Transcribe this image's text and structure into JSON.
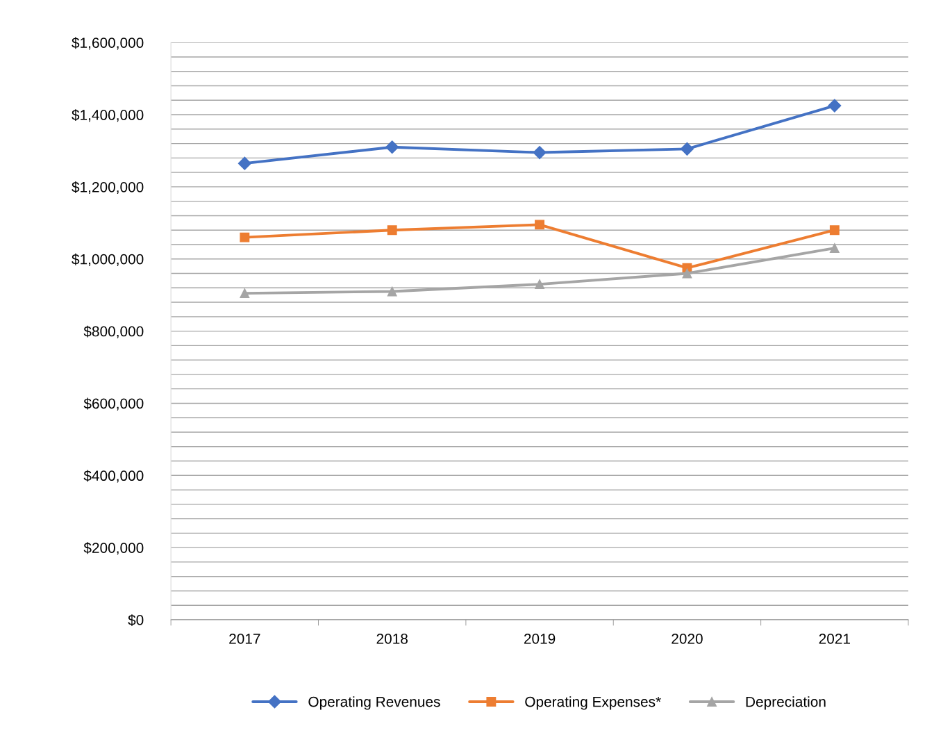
{
  "chart_data": {
    "type": "line",
    "categories": [
      "2017",
      "2018",
      "2019",
      "2020",
      "2021"
    ],
    "series": [
      {
        "name": "Operating Revenues",
        "color": "#4472c4",
        "marker": "diamond",
        "values": [
          1265000,
          1310000,
          1295000,
          1305000,
          1425000
        ]
      },
      {
        "name": "Operating Expenses*",
        "color": "#ed7d31",
        "marker": "square",
        "values": [
          1060000,
          1080000,
          1095000,
          975000,
          1080000
        ]
      },
      {
        "name": "Depreciation",
        "color": "#a5a5a5",
        "marker": "triangle",
        "values": [
          905000,
          910000,
          930000,
          960000,
          1030000
        ]
      }
    ],
    "ylim": [
      0,
      1600000
    ],
    "yticks": [
      {
        "value": 0,
        "label": "$0"
      },
      {
        "value": 40000,
        "label": null
      },
      {
        "value": 80000,
        "label": null
      },
      {
        "value": 120000,
        "label": null
      },
      {
        "value": 160000,
        "label": null
      },
      {
        "value": 200000,
        "label": "$200,000"
      },
      {
        "value": 240000,
        "label": null
      },
      {
        "value": 280000,
        "label": null
      },
      {
        "value": 320000,
        "label": null
      },
      {
        "value": 360000,
        "label": null
      },
      {
        "value": 400000,
        "label": "$400,000"
      },
      {
        "value": 440000,
        "label": null
      },
      {
        "value": 480000,
        "label": null
      },
      {
        "value": 520000,
        "label": null
      },
      {
        "value": 560000,
        "label": null
      },
      {
        "value": 600000,
        "label": "$600,000"
      },
      {
        "value": 640000,
        "label": null
      },
      {
        "value": 680000,
        "label": null
      },
      {
        "value": 720000,
        "label": null
      },
      {
        "value": 760000,
        "label": null
      },
      {
        "value": 800000,
        "label": "$800,000"
      },
      {
        "value": 840000,
        "label": null
      },
      {
        "value": 880000,
        "label": null
      },
      {
        "value": 920000,
        "label": null
      },
      {
        "value": 960000,
        "label": null
      },
      {
        "value": 1000000,
        "label": "$1,000,000"
      },
      {
        "value": 1040000,
        "label": null
      },
      {
        "value": 1080000,
        "label": null
      },
      {
        "value": 1120000,
        "label": null
      },
      {
        "value": 1160000,
        "label": null
      },
      {
        "value": 1200000,
        "label": "$1,200,000"
      },
      {
        "value": 1240000,
        "label": null
      },
      {
        "value": 1280000,
        "label": null
      },
      {
        "value": 1320000,
        "label": null
      },
      {
        "value": 1360000,
        "label": null
      },
      {
        "value": 1400000,
        "label": "$1,400,000"
      },
      {
        "value": 1440000,
        "label": null
      },
      {
        "value": 1480000,
        "label": null
      },
      {
        "value": 1520000,
        "label": null
      },
      {
        "value": 1560000,
        "label": null
      },
      {
        "value": 1600000,
        "label": "$1,600,000"
      }
    ],
    "grid": "y",
    "legend": "bottom",
    "line_style": "solid"
  }
}
